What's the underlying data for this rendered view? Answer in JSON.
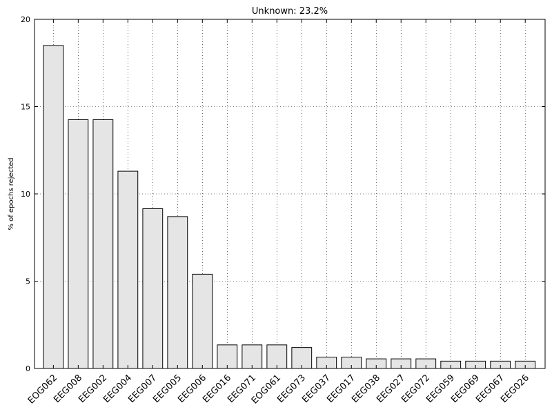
{
  "chart_data": {
    "type": "bar",
    "title": "Unknown: 23.2%",
    "xlabel": "",
    "ylabel": "% of epochs rejected",
    "ylim": [
      0,
      20
    ],
    "yticks": [
      0,
      5,
      10,
      15,
      20
    ],
    "grid": true,
    "bar_color": "#e5e5e5",
    "edge_color": "#000000",
    "categories": [
      "EOG062",
      "EEG008",
      "EEG002",
      "EEG004",
      "EEG007",
      "EEG005",
      "EEG006",
      "EEG016",
      "EEG071",
      "EOG061",
      "EEG073",
      "EEG037",
      "EEG017",
      "EEG038",
      "EEG027",
      "EEG072",
      "EEG059",
      "EEG069",
      "EEG067",
      "EEG026"
    ],
    "values": [
      18.5,
      14.25,
      14.25,
      11.3,
      9.15,
      8.7,
      5.4,
      1.35,
      1.35,
      1.35,
      1.2,
      0.65,
      0.65,
      0.55,
      0.55,
      0.55,
      0.42,
      0.42,
      0.42,
      0.42
    ]
  }
}
